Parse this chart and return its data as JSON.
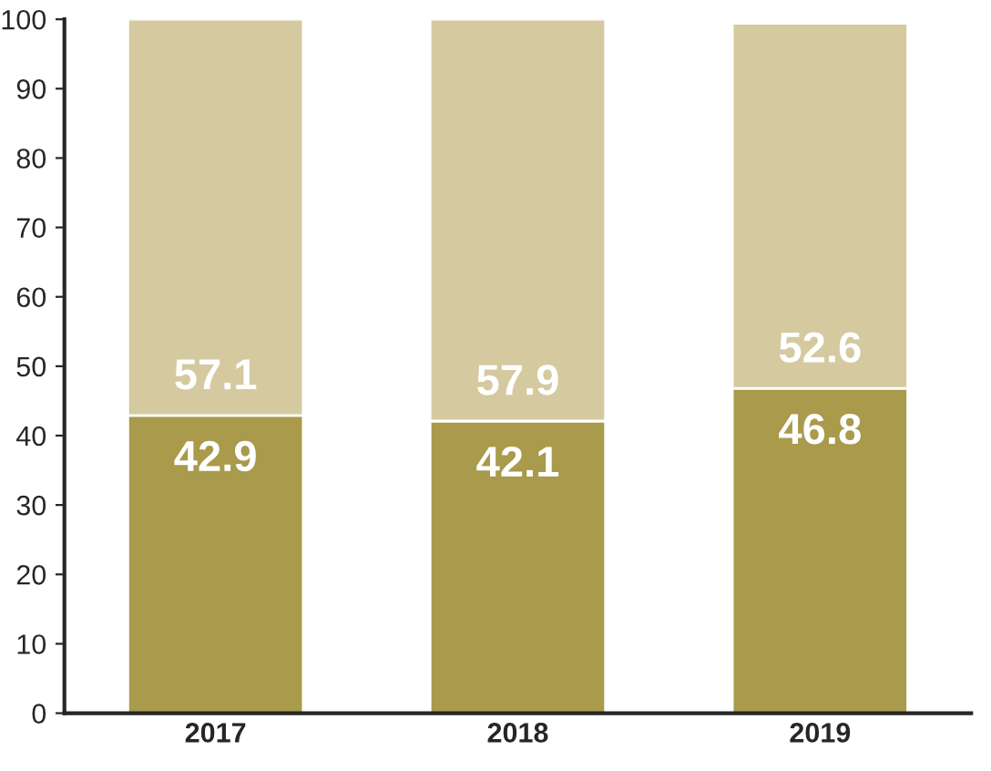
{
  "chart_data": {
    "type": "bar",
    "stacked": true,
    "categories": [
      "2017",
      "2018",
      "2019"
    ],
    "series": [
      {
        "color": "#a99a4c",
        "values": [
          42.9,
          42.1,
          46.8
        ]
      },
      {
        "color": "#d5c9a0",
        "values": [
          57.1,
          57.9,
          52.6
        ]
      }
    ],
    "ylim": [
      0,
      100
    ],
    "yticks": [
      0,
      10,
      20,
      30,
      40,
      50,
      60,
      70,
      80,
      90,
      100
    ],
    "grid": false,
    "legend": false,
    "data_labels": true
  }
}
